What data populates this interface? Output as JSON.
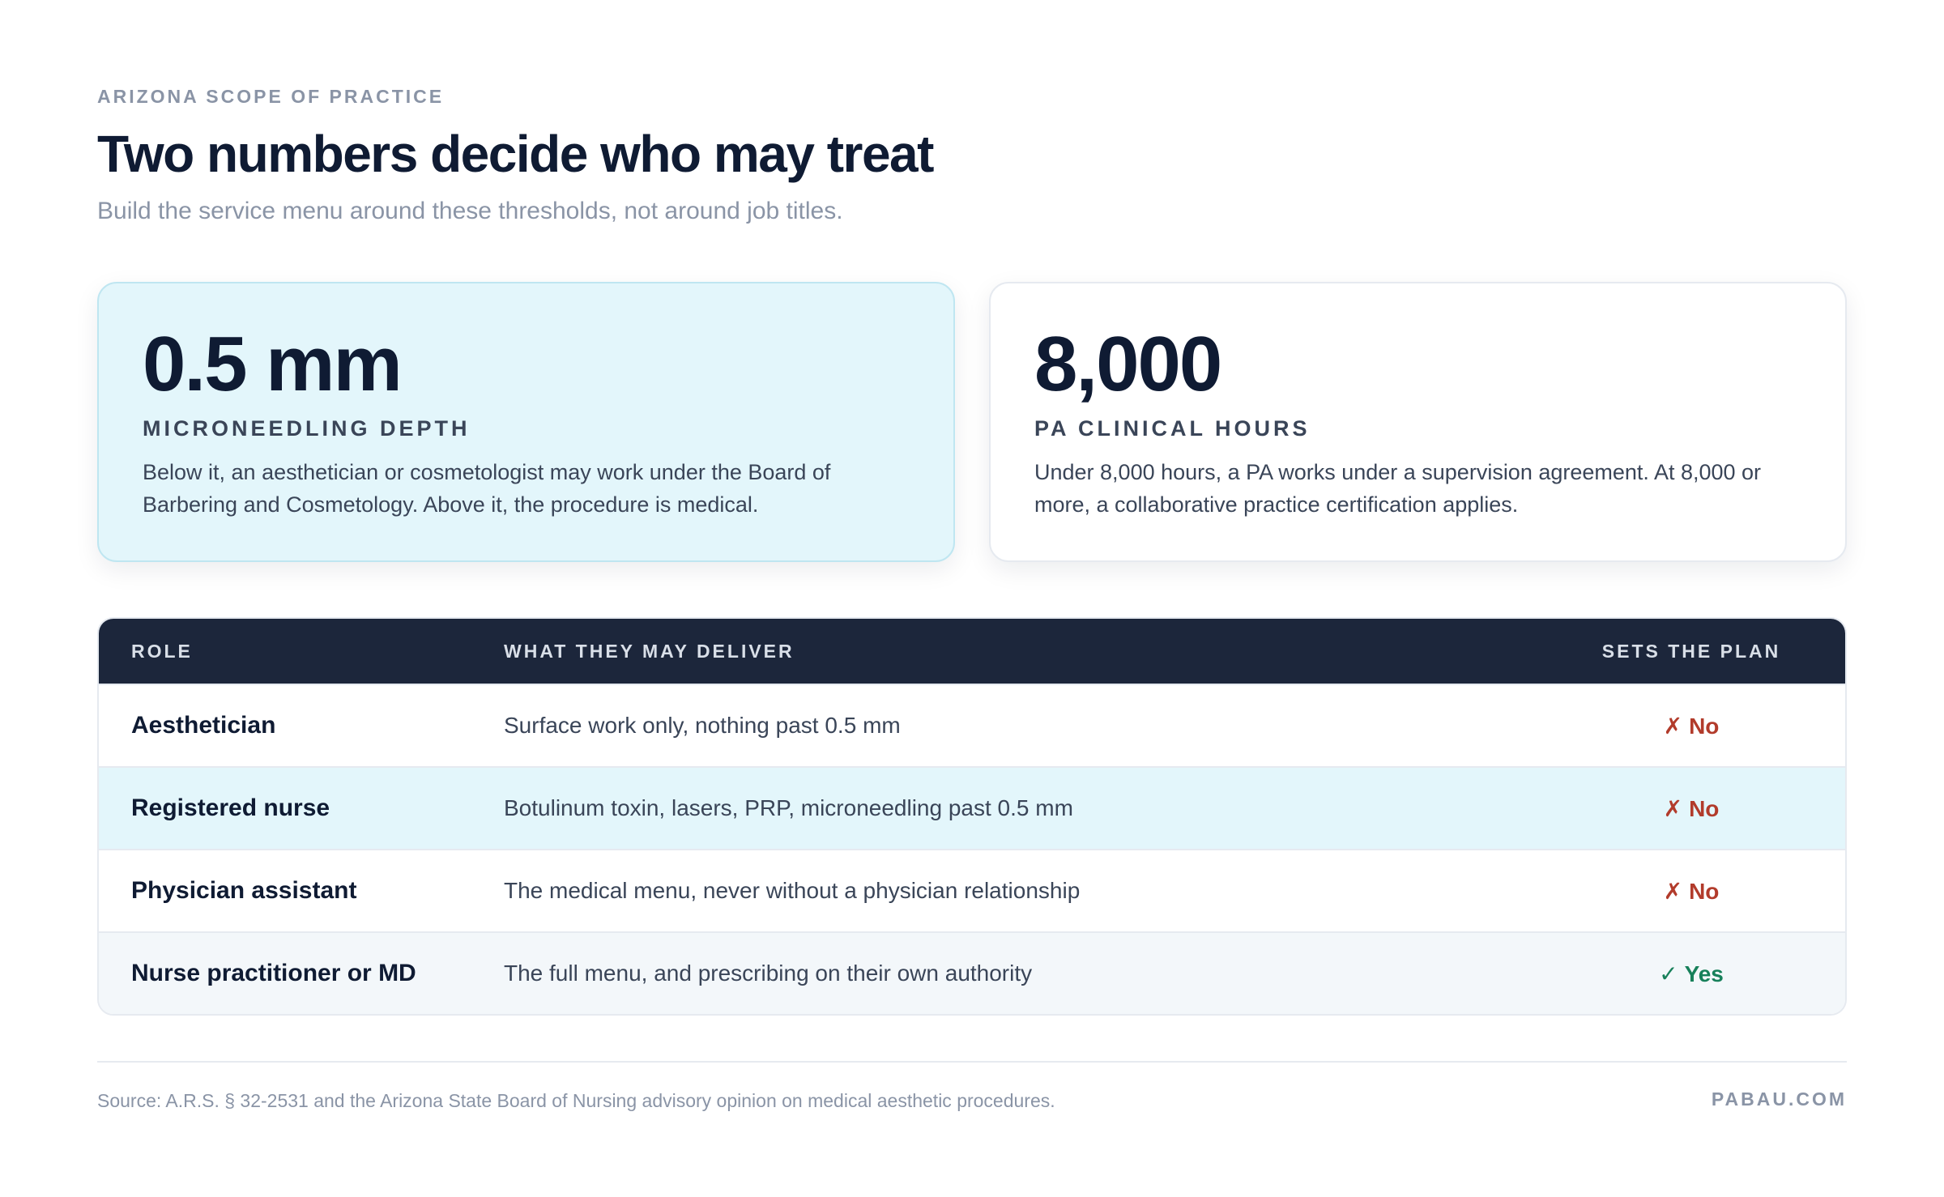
{
  "header": {
    "eyebrow": "ARIZONA SCOPE OF PRACTICE",
    "title": "Two numbers decide who may treat",
    "subtitle": "Build the service menu around these thresholds, not around job titles."
  },
  "cards": [
    {
      "value": "0.5 mm",
      "label": "MICRONEEDLING DEPTH",
      "description": "Below it, an aesthetician or cosmetologist may work under the Board of Barbering and Cosmetology. Above it, the procedure is medical."
    },
    {
      "value": "8,000",
      "label": "PA CLINICAL HOURS",
      "description": "Under 8,000 hours, a PA works under a supervision agreement. At 8,000 or more, a collaborative practice certification applies."
    }
  ],
  "table": {
    "headers": {
      "role": "ROLE",
      "deliver": "WHAT THEY MAY DELIVER",
      "plan": "SETS THE PLAN"
    },
    "rows": [
      {
        "role": "Aesthetician",
        "deliver": "Surface work only, nothing past 0.5 mm",
        "plan_mark": "✗",
        "plan_text": "No"
      },
      {
        "role": "Registered nurse",
        "deliver": "Botulinum toxin, lasers, PRP, microneedling past 0.5 mm",
        "plan_mark": "✗",
        "plan_text": "No"
      },
      {
        "role": "Physician assistant",
        "deliver": "The medical menu, never without a physician relationship",
        "plan_mark": "✗",
        "plan_text": "No"
      },
      {
        "role": "Nurse practitioner or MD",
        "deliver": "The full menu, and prescribing on their own authority",
        "plan_mark": "✓",
        "plan_text": "Yes"
      }
    ]
  },
  "footer": {
    "source": "Source: A.R.S. § 32-2531 and the Arizona State Board of Nursing advisory opinion on medical aesthetic procedures.",
    "brand": "PABAU.COM"
  },
  "colors": {
    "accent_bg": "#e3f6fb",
    "header_bg": "#1c263b",
    "no": "#b23b2b",
    "yes": "#17805a"
  }
}
